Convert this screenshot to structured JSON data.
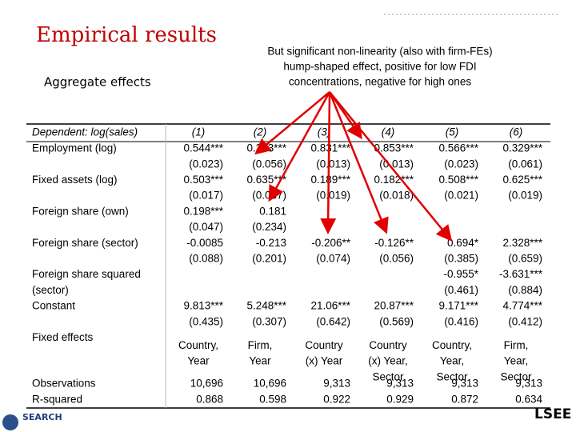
{
  "header": {
    "title": "Empirical results",
    "subtitle": "Aggregate effects",
    "note": [
      "But significant non-linearity (also with firm-FEs)",
      "hump-shaped effect, positive for low FDI",
      "concentrations, negative for high ones"
    ]
  },
  "table": {
    "header": [
      "Dependent: log(sales)",
      "(1)",
      "(2)",
      "(3)",
      "(4)",
      "(5)",
      "(6)"
    ],
    "rows": [
      [
        "Employment (log)",
        "0.544***",
        "0.333***",
        "0.831***",
        "0.853***",
        "0.566***",
        "0.329***"
      ],
      [
        "",
        "(0.023)",
        "(0.056)",
        "(0.013)",
        "(0.013)",
        "(0.023)",
        "(0.061)"
      ],
      [
        "Fixed assets (log)",
        "0.503***",
        "0.635***",
        "0.189***",
        "0.182***",
        "0.508***",
        "0.625***"
      ],
      [
        "",
        "(0.017)",
        "(0.037)",
        "(0.019)",
        "(0.018)",
        "(0.021)",
        "(0.019)"
      ],
      [
        "Foreign share (own)",
        "0.198***",
        "0.181",
        "",
        "",
        "",
        ""
      ],
      [
        "",
        "(0.047)",
        "(0.234)",
        "",
        "",
        "",
        ""
      ],
      [
        "Foreign share (sector)",
        "-0.0085",
        "-0.213",
        "-0.206**",
        "-0.126**",
        "0.694*",
        "2.328***"
      ],
      [
        "",
        "(0.088)",
        "(0.201)",
        "(0.074)",
        "(0.056)",
        "(0.385)",
        "(0.659)"
      ],
      [
        "Foreign share squared",
        "",
        "",
        "",
        "",
        "-0.955*",
        "-3.631***"
      ],
      [
        "(sector)",
        "",
        "",
        "",
        "",
        "(0.461)",
        "(0.884)"
      ],
      [
        "Constant",
        "9.813***",
        "5.248***",
        "21.06***",
        "20.87***",
        "9.171***",
        "4.774***"
      ],
      [
        "",
        "(0.435)",
        "(0.307)",
        "(0.642)",
        "(0.569)",
        "(0.416)",
        "(0.412)"
      ]
    ],
    "fixed_effects": {
      "label": "Fixed effects",
      "cells": [
        [
          "Country,",
          "Year"
        ],
        [
          "Firm,",
          "Year"
        ],
        [
          "Country",
          "(x) Year"
        ],
        [
          "Country",
          "(x) Year,",
          "Sector"
        ],
        [
          "Country,",
          "Year,",
          "Sector"
        ],
        [
          "Firm,",
          "Year,",
          "Sector"
        ]
      ]
    },
    "footer_rows": [
      [
        "Observations",
        "10,696",
        "10,696",
        "9,313",
        "9,313",
        "9,313",
        "9,313"
      ],
      [
        "R-squared",
        "0.868",
        "0.598",
        "0.922",
        "0.929",
        "0.872",
        "0.634"
      ]
    ]
  },
  "logos": {
    "left": "SEARCH",
    "right": "LSEE"
  }
}
